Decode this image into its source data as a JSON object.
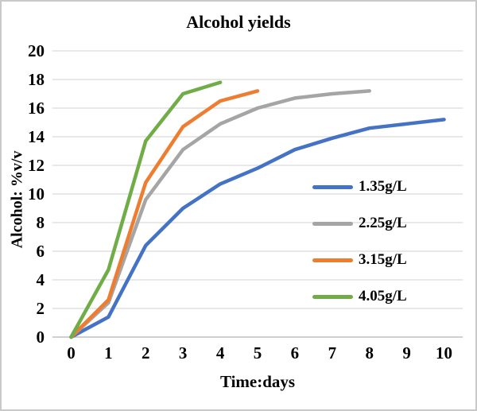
{
  "chart_data": {
    "type": "line",
    "title": "Alcohol yields",
    "xlabel": "Time:days",
    "ylabel": "Alcohol: %v/v",
    "x_ticks": [
      "0",
      "1",
      "2",
      "3",
      "4",
      "5",
      "6",
      "7",
      "8",
      "9",
      "10"
    ],
    "y_ticks": [
      0,
      2,
      4,
      6,
      8,
      10,
      12,
      14,
      16,
      18,
      20
    ],
    "ylim": [
      0,
      20
    ],
    "grid": "horizontal",
    "legend_position": "right-middle-overlay",
    "series": [
      {
        "name": "1.35g/L",
        "color": "#4472C4",
        "x": [
          0,
          1,
          2,
          3,
          4,
          5,
          6,
          7,
          8,
          9,
          10
        ],
        "values": [
          0,
          1.4,
          6.4,
          9.0,
          10.7,
          11.8,
          13.1,
          13.9,
          14.6,
          14.9,
          15.2
        ]
      },
      {
        "name": "2.25g/L",
        "color": "#A5A5A5",
        "x": [
          0,
          1,
          2,
          3,
          4,
          5,
          6,
          7,
          8
        ],
        "values": [
          0,
          2.4,
          9.6,
          13.1,
          14.9,
          16.0,
          16.7,
          17.0,
          17.2
        ]
      },
      {
        "name": "3.15g/L",
        "color": "#ED7D31",
        "x": [
          0,
          1,
          2,
          3,
          4,
          5
        ],
        "values": [
          0,
          2.6,
          10.8,
          14.7,
          16.5,
          17.2
        ]
      },
      {
        "name": "4.05g/L",
        "color": "#70AD47",
        "x": [
          0,
          1,
          2,
          3,
          4
        ],
        "values": [
          0,
          4.7,
          13.7,
          17.0,
          17.8
        ]
      }
    ],
    "colors": {
      "gridline": "#D9D9D9",
      "axis_line": "#BFBFBF",
      "text": "#000000",
      "chart_border": "#C9C9C9",
      "background": "#FFFFFF"
    }
  }
}
